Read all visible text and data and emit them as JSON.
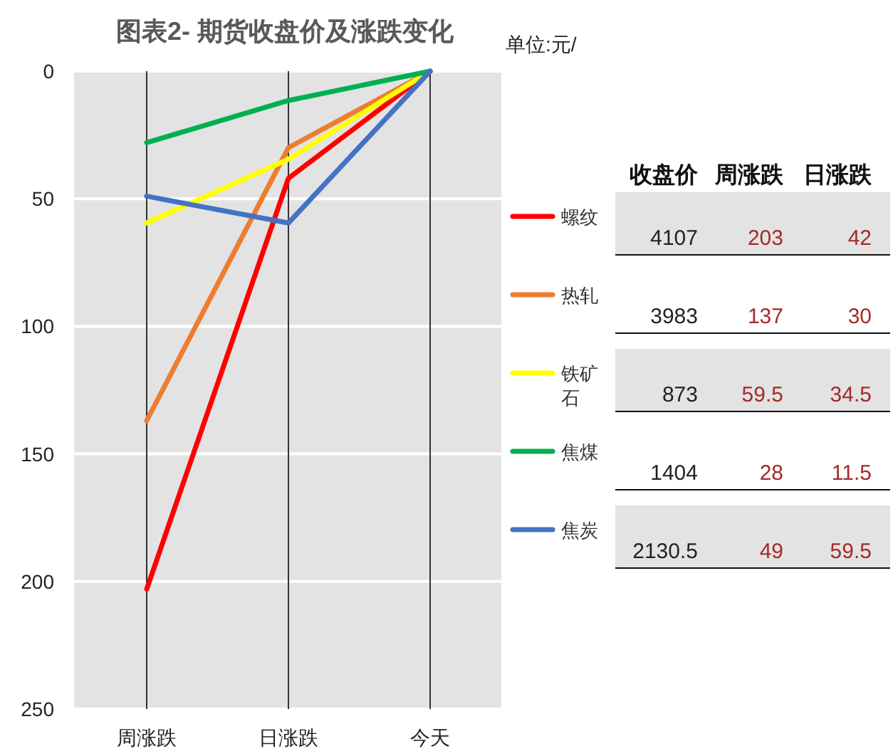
{
  "chart_data": {
    "type": "line",
    "title": "图表2- 期货收盘价及涨跌变化",
    "categories": [
      "周涨跌",
      "日涨跌",
      "今天"
    ],
    "series": [
      {
        "name": "螺纹",
        "color": "#ff0000",
        "values": [
          203,
          42,
          0
        ]
      },
      {
        "name": "热轧",
        "color": "#ed7d31",
        "values": [
          137,
          30,
          0
        ]
      },
      {
        "name": "铁矿石",
        "color": "#ffff00",
        "values": [
          59.5,
          34.5,
          0
        ]
      },
      {
        "name": "焦煤",
        "color": "#00b050",
        "values": [
          28,
          11.5,
          0
        ]
      },
      {
        "name": "焦炭",
        "color": "#4472c4",
        "values": [
          49,
          59.5,
          0
        ]
      }
    ],
    "ylim": [
      250,
      0
    ],
    "yticks": [
      0,
      50,
      100,
      150,
      200,
      250
    ],
    "grid": true,
    "legend": "right",
    "line_style": "solid",
    "annotations": [
      "单位:元/",
      "收盘价",
      "周涨跌",
      "日涨跌",
      "4107",
      "203",
      "42",
      "3983",
      "137",
      "30",
      "873",
      "59.5",
      "34.5",
      "1404",
      "28",
      "11.5",
      "2130.5",
      "49",
      "59.5"
    ]
  }
}
